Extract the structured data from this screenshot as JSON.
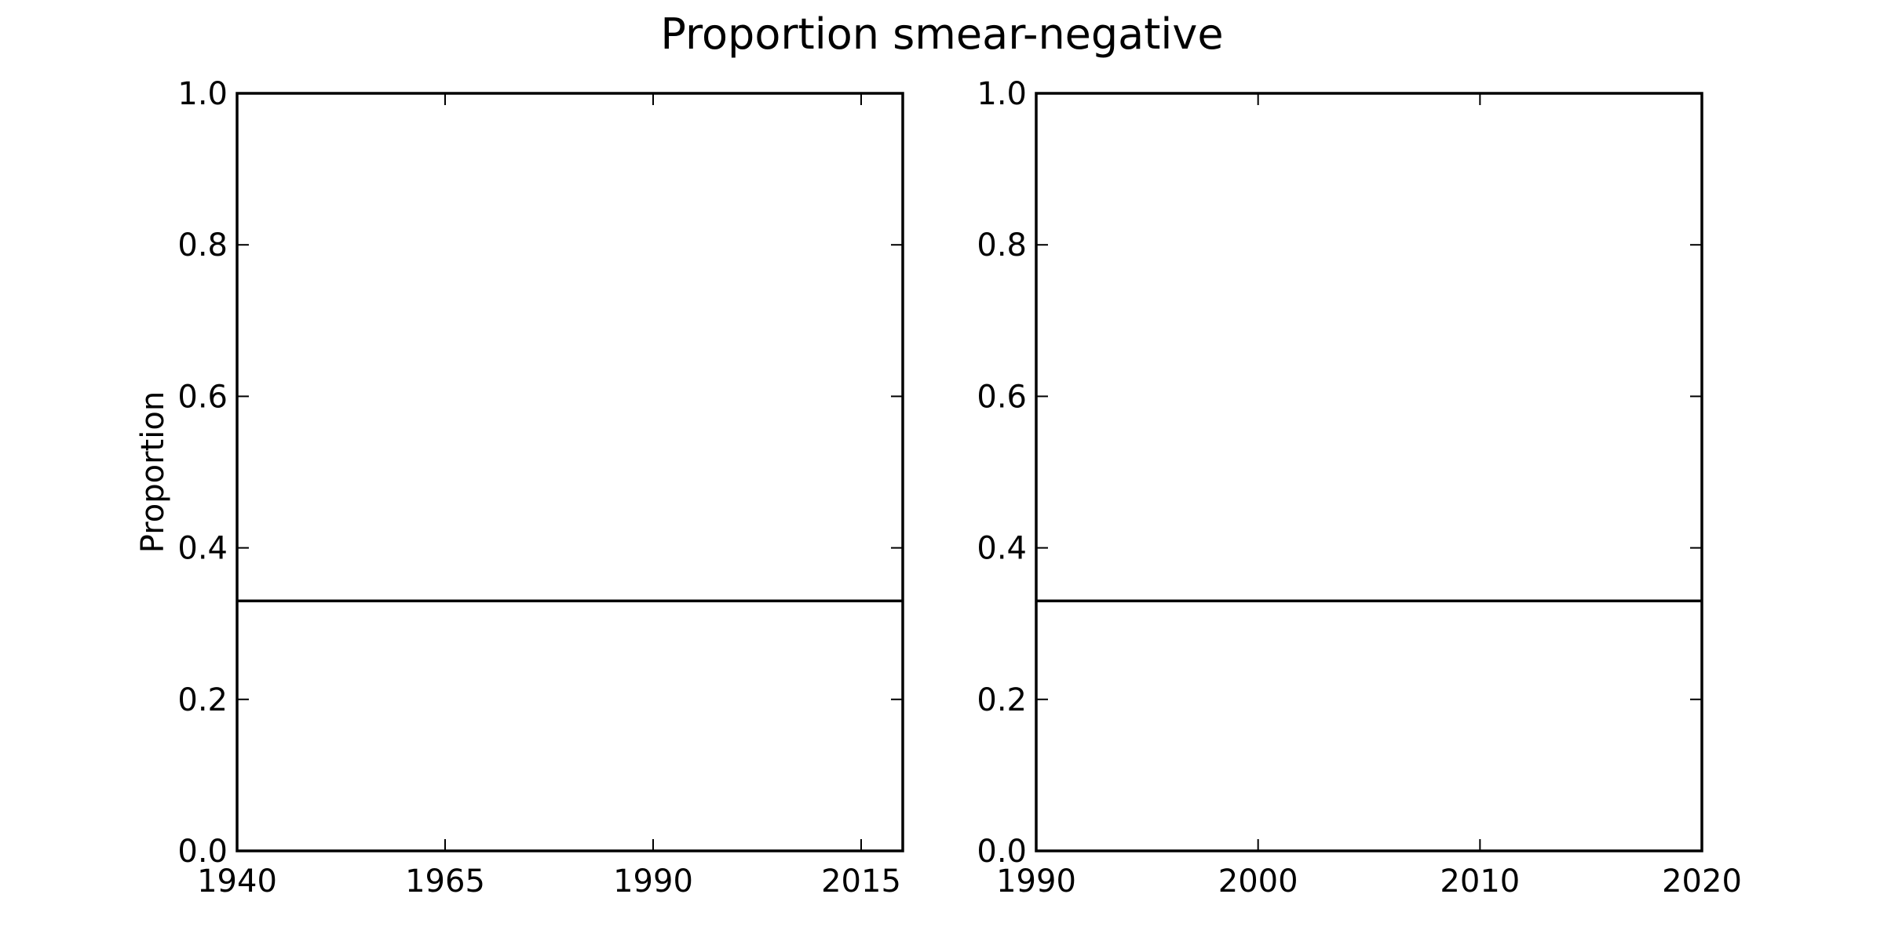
{
  "figure": {
    "title": "Proportion smear-negative",
    "background": "#ffffff",
    "line_color": "#000000"
  },
  "chart_data": [
    {
      "type": "line",
      "title": "",
      "xlabel": "",
      "ylabel": "Proportion",
      "xlim": [
        1940,
        2020
      ],
      "ylim": [
        0,
        1
      ],
      "xticks": [
        1940,
        1965,
        1990,
        2015
      ],
      "xtick_labels": [
        "1940",
        "1965",
        "1990",
        "2015"
      ],
      "yticks": [
        0,
        0.2,
        0.4,
        0.6,
        0.8,
        1
      ],
      "ytick_labels": [
        "0.0",
        "0.2",
        "0.4",
        "0.6",
        "0.8",
        "1.0"
      ],
      "grid": false,
      "series": [
        {
          "x": [
            1940,
            2020
          ],
          "y": [
            0.33,
            0.33
          ]
        }
      ]
    },
    {
      "type": "line",
      "title": "",
      "xlabel": "",
      "ylabel": "",
      "xlim": [
        1990,
        2020
      ],
      "ylim": [
        0,
        1
      ],
      "xticks": [
        1990,
        2000,
        2010,
        2020
      ],
      "xtick_labels": [
        "1990",
        "2000",
        "2010",
        "2020"
      ],
      "yticks": [
        0,
        0.2,
        0.4,
        0.6,
        0.8,
        1
      ],
      "ytick_labels": [
        "0.0",
        "0.2",
        "0.4",
        "0.6",
        "0.8",
        "1.0"
      ],
      "grid": false,
      "series": [
        {
          "x": [
            1990,
            2020
          ],
          "y": [
            0.33,
            0.33
          ]
        }
      ]
    }
  ]
}
